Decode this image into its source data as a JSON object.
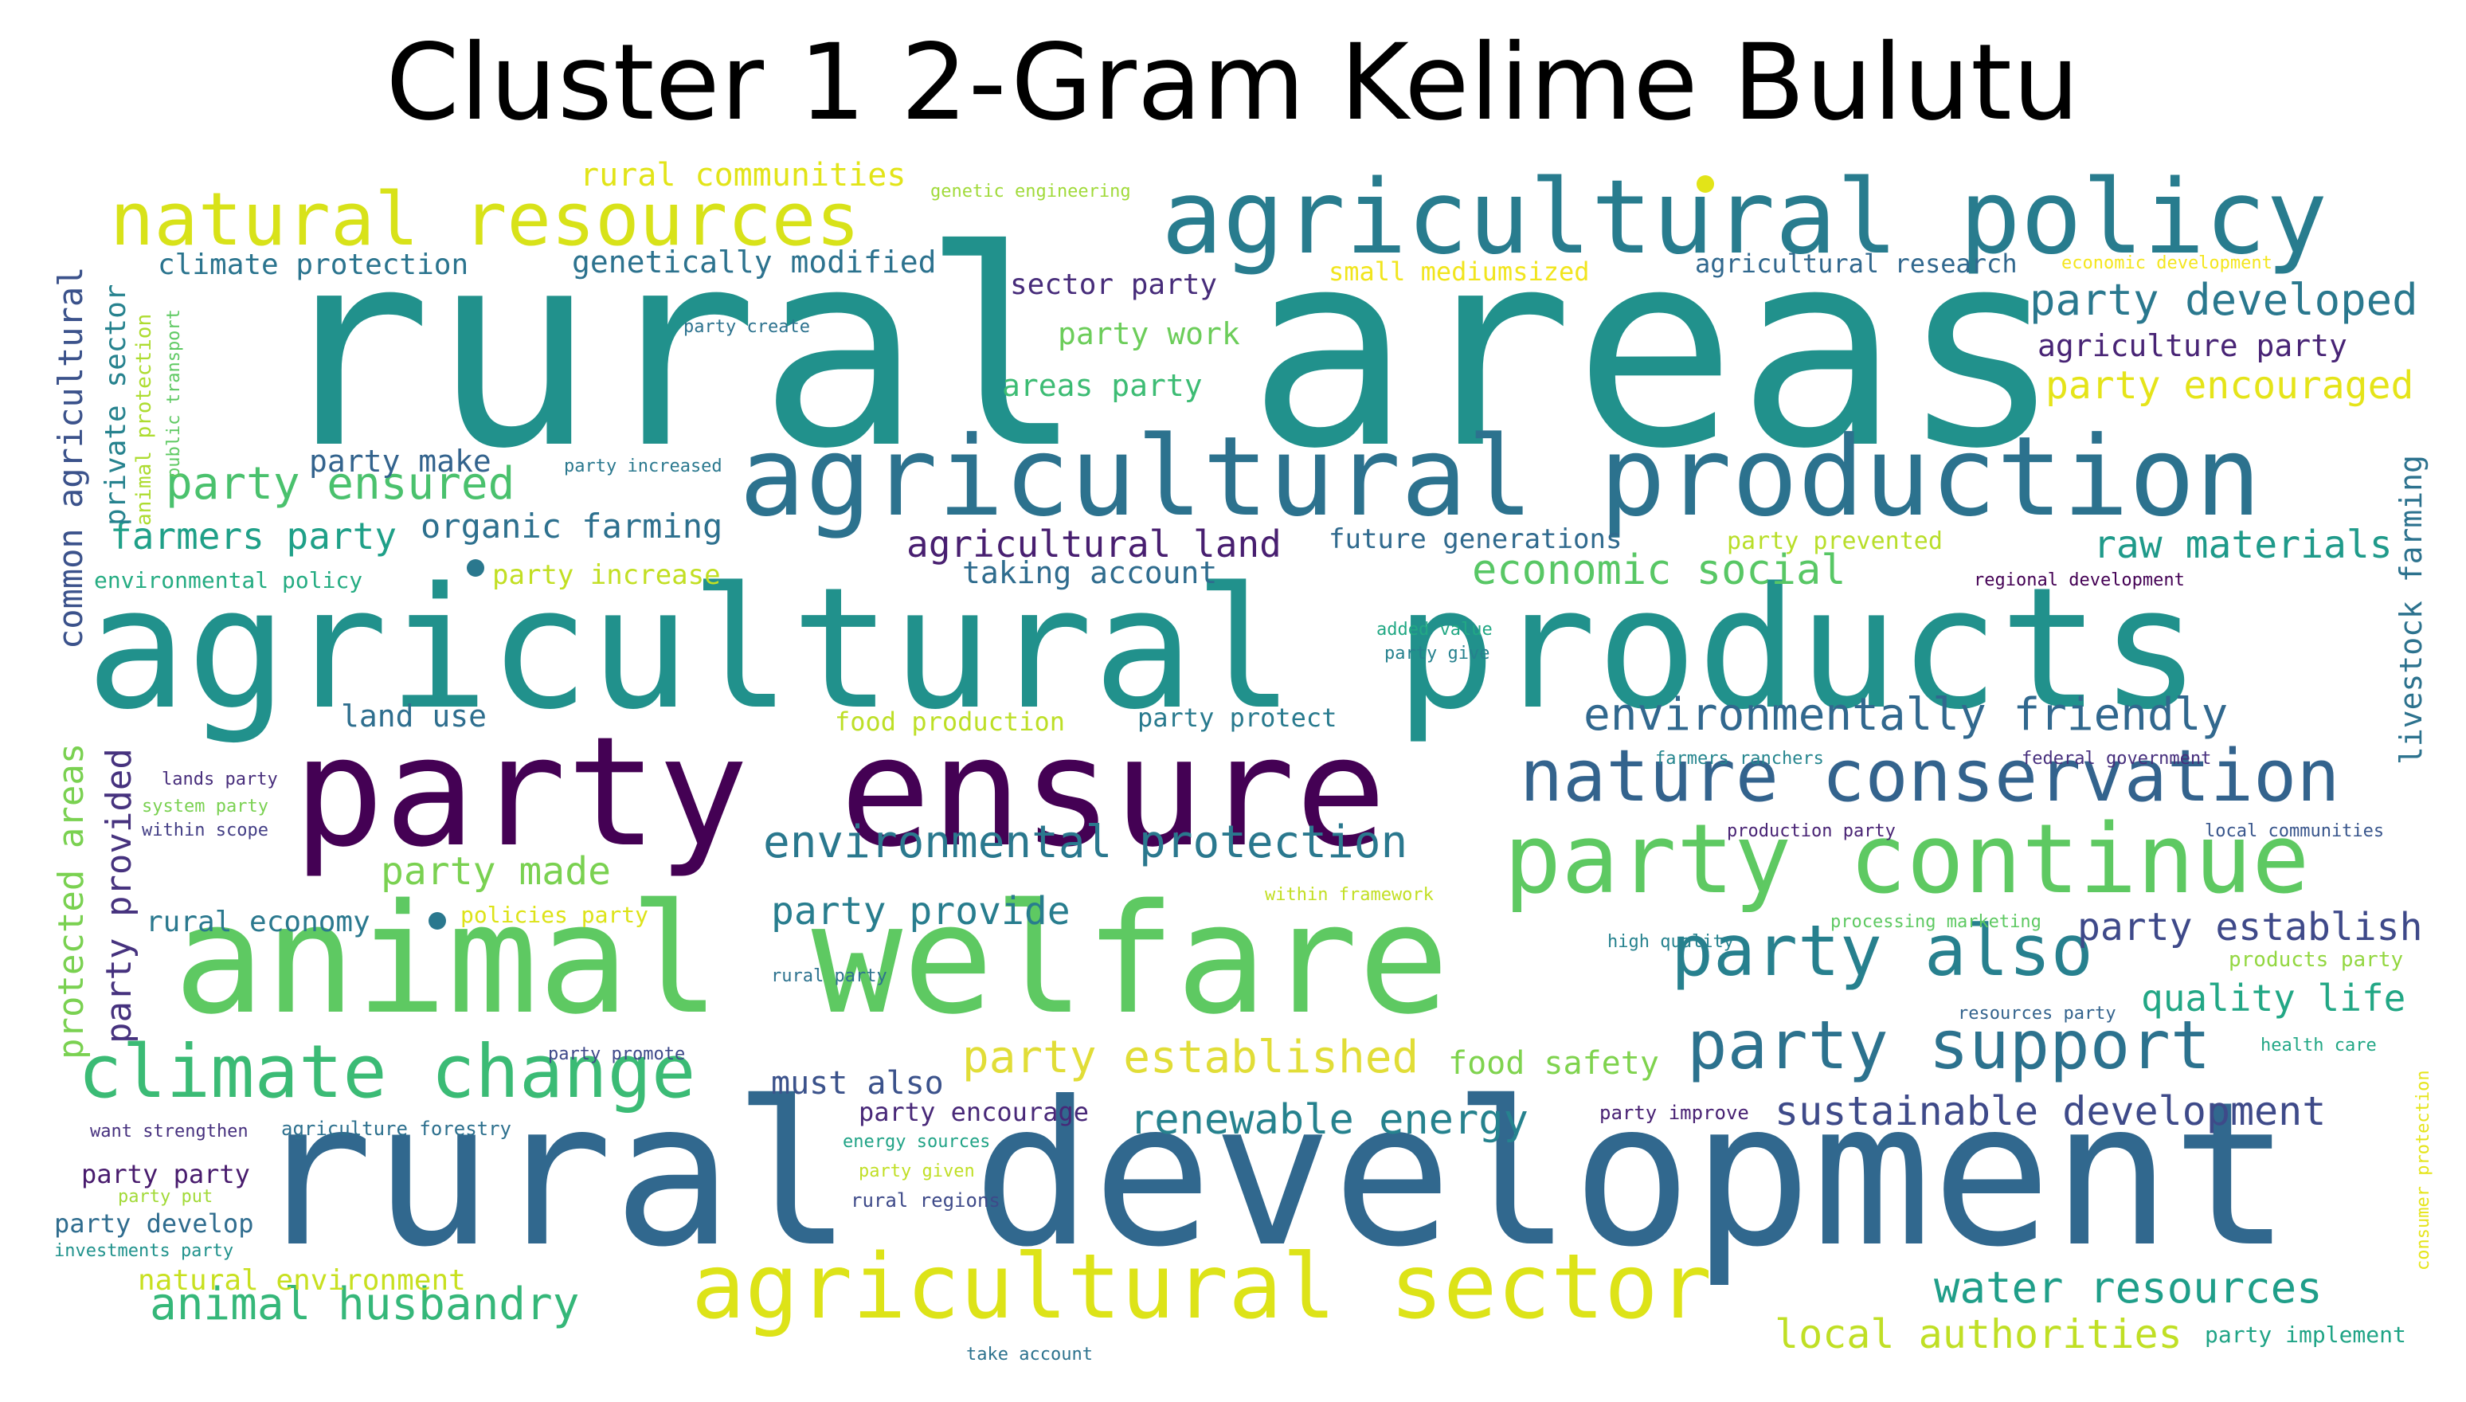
{
  "title": "Cluster 1 2-Gram Kelime Bulutu",
  "palette": "viridis",
  "words": [
    {
      "text": "rural areas",
      "color": "#21918c"
    },
    {
      "text": "agricultural products",
      "color": "#21918c"
    },
    {
      "text": "rural development",
      "color": "#31688e"
    },
    {
      "text": "animal welfare",
      "color": "#5ec962"
    },
    {
      "text": "party ensure",
      "color": "#440154"
    },
    {
      "text": "agricultural production",
      "color": "#2c728e"
    },
    {
      "text": "agricultural policy",
      "color": "#287c8e"
    },
    {
      "text": "agricultural sector",
      "color": "#dde318"
    },
    {
      "text": "natural resources",
      "color": "#d8e219"
    },
    {
      "text": "party continue",
      "color": "#5ec962"
    },
    {
      "text": "nature conservation",
      "color": "#33638d"
    },
    {
      "text": "climate change",
      "color": "#3bbb75"
    },
    {
      "text": "party support",
      "color": "#2c728e"
    },
    {
      "text": "party also",
      "color": "#27808e"
    },
    {
      "text": "environmentally friendly",
      "color": "#31688e"
    },
    {
      "text": "environmental protection",
      "color": "#2a788e"
    },
    {
      "text": "party established",
      "color": "#e1dd37"
    },
    {
      "text": "animal husbandry",
      "color": "#35b779"
    },
    {
      "text": "water resources",
      "color": "#1f9e89"
    },
    {
      "text": "local authorities",
      "color": "#c0df25"
    },
    {
      "text": "sustainable development",
      "color": "#3e4a89"
    },
    {
      "text": "renewable energy",
      "color": "#26828e"
    },
    {
      "text": "party ensured",
      "color": "#4ac16d"
    },
    {
      "text": "party developed",
      "color": "#2a788e"
    },
    {
      "text": "party encouraged",
      "color": "#e5e419"
    },
    {
      "text": "raw materials",
      "color": "#1f9a8a"
    },
    {
      "text": "economic social",
      "color": "#58c765"
    },
    {
      "text": "party establish",
      "color": "#3e4989"
    },
    {
      "text": "quality life",
      "color": "#22a785"
    },
    {
      "text": "party made",
      "color": "#7ad151"
    },
    {
      "text": "party provide",
      "color": "#287d8e"
    },
    {
      "text": "farmers party",
      "color": "#1fa088"
    },
    {
      "text": "agricultural land",
      "color": "#481f70"
    },
    {
      "text": "rural communities",
      "color": "#e2e418"
    },
    {
      "text": "organic farming",
      "color": "#2d708e"
    },
    {
      "text": "genetically modified",
      "color": "#2c728e"
    },
    {
      "text": "climate protection",
      "color": "#2b748e"
    },
    {
      "text": "sector party",
      "color": "#472c7a"
    },
    {
      "text": "party work",
      "color": "#6ccd5a"
    },
    {
      "text": "areas party",
      "color": "#3dbc74"
    },
    {
      "text": "agriculture party",
      "color": "#482475"
    },
    {
      "text": "party make",
      "color": "#33638d"
    },
    {
      "text": "taking account",
      "color": "#2f6c8e"
    },
    {
      "text": "future generations",
      "color": "#306a8e"
    },
    {
      "text": "land use",
      "color": "#2e6e8e"
    },
    {
      "text": "food production",
      "color": "#bddf26"
    },
    {
      "text": "party protect",
      "color": "#297a8e"
    },
    {
      "text": "rural economy",
      "color": "#2a788e"
    },
    {
      "text": "party increase",
      "color": "#c2df23"
    },
    {
      "text": "environmental policy",
      "color": "#25ac82"
    },
    {
      "text": "food safety",
      "color": "#7fd34e"
    },
    {
      "text": "must also",
      "color": "#3b528b"
    },
    {
      "text": "party encourage",
      "color": "#482878"
    },
    {
      "text": "party party",
      "color": "#481b6d"
    },
    {
      "text": "party develop",
      "color": "#2f6c8e"
    },
    {
      "text": "natural environment",
      "color": "#c8e020"
    },
    {
      "text": "common agricultural",
      "color": "#3b528b"
    },
    {
      "text": "private sector",
      "color": "#26828e"
    },
    {
      "text": "animal protection",
      "color": "#addc30"
    },
    {
      "text": "public transport",
      "color": "#5ec962"
    },
    {
      "text": "protected areas",
      "color": "#7ad151"
    },
    {
      "text": "party provided",
      "color": "#46327e"
    },
    {
      "text": "livestock farming",
      "color": "#2c728e"
    },
    {
      "text": "consumer protection",
      "color": "#e5e419"
    },
    {
      "text": "genetic engineering",
      "color": "#a0da39"
    },
    {
      "text": "small mediumsized",
      "color": "#f1e51d"
    },
    {
      "text": "agricultural research",
      "color": "#31688e"
    },
    {
      "text": "economic development",
      "color": "#f4e61e"
    },
    {
      "text": "party create",
      "color": "#2c728e"
    },
    {
      "text": "party increased",
      "color": "#2a788e"
    },
    {
      "text": "party prevented",
      "color": "#b8de29"
    },
    {
      "text": "regional development",
      "color": "#440154"
    },
    {
      "text": "added value",
      "color": "#22a884"
    },
    {
      "text": "party give",
      "color": "#26818e"
    },
    {
      "text": "farmers ranchers",
      "color": "#25858e"
    },
    {
      "text": "federal government",
      "color": "#472f7d"
    },
    {
      "text": "production party",
      "color": "#482374"
    },
    {
      "text": "local communities",
      "color": "#39568c"
    },
    {
      "text": "processing marketing",
      "color": "#5ec962"
    },
    {
      "text": "products party",
      "color": "#93d741"
    },
    {
      "text": "high quality",
      "color": "#26828e"
    },
    {
      "text": "resources party",
      "color": "#33638d"
    },
    {
      "text": "health care",
      "color": "#22a785"
    },
    {
      "text": "within framework",
      "color": "#c2df23"
    },
    {
      "text": "policies party",
      "color": "#dde318"
    },
    {
      "text": "rural party",
      "color": "#2c728e"
    },
    {
      "text": "party promote",
      "color": "#3e4989"
    },
    {
      "text": "party improve",
      "color": "#482173"
    },
    {
      "text": "lands party",
      "color": "#472d7b"
    },
    {
      "text": "system party",
      "color": "#7ad151"
    },
    {
      "text": "within scope",
      "color": "#433e85"
    },
    {
      "text": "want strengthen",
      "color": "#46307e"
    },
    {
      "text": "agriculture forestry",
      "color": "#2d708e"
    },
    {
      "text": "energy sources",
      "color": "#20a386"
    },
    {
      "text": "party given",
      "color": "#c0df25"
    },
    {
      "text": "rural regions",
      "color": "#3e4a89"
    },
    {
      "text": "party put",
      "color": "#a2da37"
    },
    {
      "text": "investments party",
      "color": "#20928c"
    },
    {
      "text": "take account",
      "color": "#2c728e"
    },
    {
      "text": "party implement",
      "color": "#20a486"
    }
  ]
}
